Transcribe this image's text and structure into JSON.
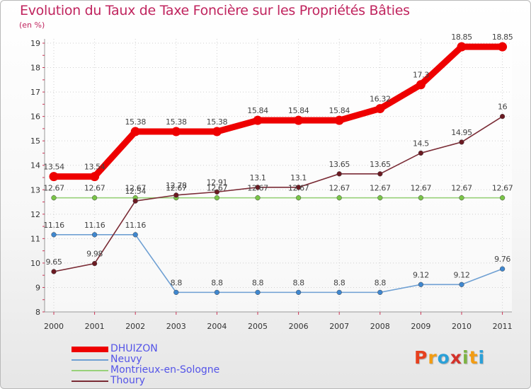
{
  "title": "Evolution du Taux de Taxe Foncière sur les Propriétés Bâties",
  "unit": "(en %)",
  "logo": [
    "P",
    "r",
    "o",
    "x",
    "i",
    "t",
    "i"
  ],
  "logo_colors": [
    "#e6401e",
    "#f39c12",
    "#2aa0d8",
    "#d3322b",
    "#7cb342",
    "#f39c12",
    "#2aa0d8"
  ],
  "chart_data": {
    "type": "line",
    "title": "Evolution du Taux de Taxe Foncière sur les Propriétés Bâties",
    "ylabel": "(en %)",
    "xlabel": "",
    "x": [
      "2000",
      "2001",
      "2002",
      "2003",
      "2004",
      "2005",
      "2006",
      "2007",
      "2008",
      "2009",
      "2010",
      "2011"
    ],
    "ylim": [
      8,
      19
    ],
    "yticks": [
      "8",
      "9",
      "10",
      "11",
      "12",
      "13",
      "14",
      "15",
      "16",
      "17",
      "18",
      "19"
    ],
    "series": [
      {
        "name": "DHUIZON",
        "color": "#ee0000",
        "style": "thick",
        "values": [
          13.54,
          13.54,
          15.38,
          15.38,
          15.38,
          15.84,
          15.84,
          15.84,
          16.32,
          17.3,
          18.85,
          18.85
        ],
        "labels": [
          "13.54",
          "13.54",
          "15.38",
          "15.38",
          "15.38",
          "15.84",
          "15.84",
          "15.84",
          "16.32",
          "17.3",
          "18.85",
          "18.85"
        ]
      },
      {
        "name": "Neuvy",
        "color": "#6fa0d3",
        "marker": "#3f87cf",
        "values": [
          11.16,
          11.16,
          11.16,
          8.8,
          8.8,
          8.8,
          8.8,
          8.8,
          8.8,
          9.12,
          9.12,
          9.76
        ],
        "labels": [
          "11.16",
          "11.16",
          "11.16",
          "8.8",
          "8.8",
          "8.8",
          "8.8",
          "8.8",
          "8.8",
          "9.12",
          "9.12",
          "9.76"
        ]
      },
      {
        "name": "Montrieux-en-Sologne",
        "color": "#98d17a",
        "marker": "#79c447",
        "values": [
          12.67,
          12.67,
          12.67,
          12.67,
          12.67,
          12.67,
          12.67,
          12.67,
          12.67,
          12.67,
          12.67,
          12.67
        ],
        "labels": [
          "12.67",
          "12.67",
          "12.67",
          "12.67",
          "12.67",
          "12.67",
          "12.67",
          "12.67",
          "12.67",
          "12.67",
          "12.67",
          "12.67"
        ]
      },
      {
        "name": "Thoury",
        "color": "#7a2b35",
        "marker": "#6b1a22",
        "values": [
          9.65,
          9.98,
          12.54,
          12.78,
          12.91,
          13.1,
          13.1,
          13.65,
          13.65,
          14.5,
          14.95,
          16
        ],
        "labels": [
          "9.65",
          "9.98",
          "12.54",
          "12.78",
          "12.91",
          "13.1",
          "13.1",
          "13.65",
          "13.65",
          "14.5",
          "14.95",
          "16"
        ]
      }
    ]
  }
}
